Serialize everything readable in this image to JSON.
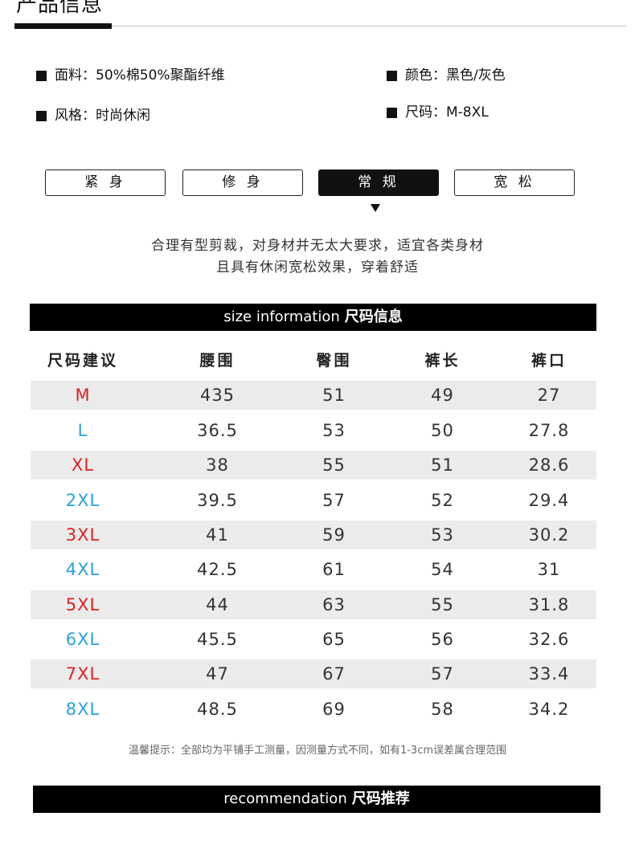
{
  "header": {
    "title": "产品信息"
  },
  "attributes": [
    {
      "label": "面料",
      "value": "50%棉50%聚酯纤维"
    },
    {
      "label": "颜色",
      "value": "黑色/灰色"
    },
    {
      "label": "风格",
      "value": "时尚休闲"
    },
    {
      "label": "尺码",
      "value": "M-8XL"
    }
  ],
  "fit_options": [
    "紧 身",
    "修 身",
    "常 规",
    "宽 松"
  ],
  "fit_selected": "常 规",
  "fit_description": [
    "合理有型剪裁，对身材并无太大要求，适宜各类身材",
    "且具有休闲宽松效果，穿着舒适"
  ],
  "size_banner": {
    "en": "size information",
    "cn": "尺码信息"
  },
  "table": {
    "headers": [
      "尺码建议",
      "腰围",
      "臀围",
      "裤长",
      "裤口"
    ],
    "rows": [
      {
        "size": "M",
        "size_color": "#e02020",
        "waist": "435",
        "hip": "51",
        "length": "49",
        "hem": "27"
      },
      {
        "size": "L",
        "size_color": "#2a9fe0",
        "waist": "36.5",
        "hip": "53",
        "length": "50",
        "hem": "27.8"
      },
      {
        "size": "XL",
        "size_color": "#e02020",
        "waist": "38",
        "hip": "55",
        "length": "51",
        "hem": "28.6"
      },
      {
        "size": "2XL",
        "size_color": "#2a9fe0",
        "waist": "39.5",
        "hip": "57",
        "length": "52",
        "hem": "29.4"
      },
      {
        "size": "3XL",
        "size_color": "#e02020",
        "waist": "41",
        "hip": "59",
        "length": "53",
        "hem": "30.2"
      },
      {
        "size": "4XL",
        "size_color": "#2a9fe0",
        "waist": "42.5",
        "hip": "61",
        "length": "54",
        "hem": "31"
      },
      {
        "size": "5XL",
        "size_color": "#e02020",
        "waist": "44",
        "hip": "63",
        "length": "55",
        "hem": "31.8"
      },
      {
        "size": "6XL",
        "size_color": "#2a9fe0",
        "waist": "45.5",
        "hip": "65",
        "length": "56",
        "hem": "32.6"
      },
      {
        "size": "7XL",
        "size_color": "#e02020",
        "waist": "47",
        "hip": "67",
        "length": "57",
        "hem": "33.4"
      },
      {
        "size": "8XL",
        "size_color": "#2a9fe0",
        "waist": "48.5",
        "hip": "69",
        "length": "58",
        "hem": "34.2"
      }
    ]
  },
  "note": "温馨提示：全部均为平铺手工测量，因测量方式不同，如有1-3cm误差属合理范围",
  "recommend_banner": {
    "en": "recommendation",
    "cn": "尺码推荐"
  }
}
